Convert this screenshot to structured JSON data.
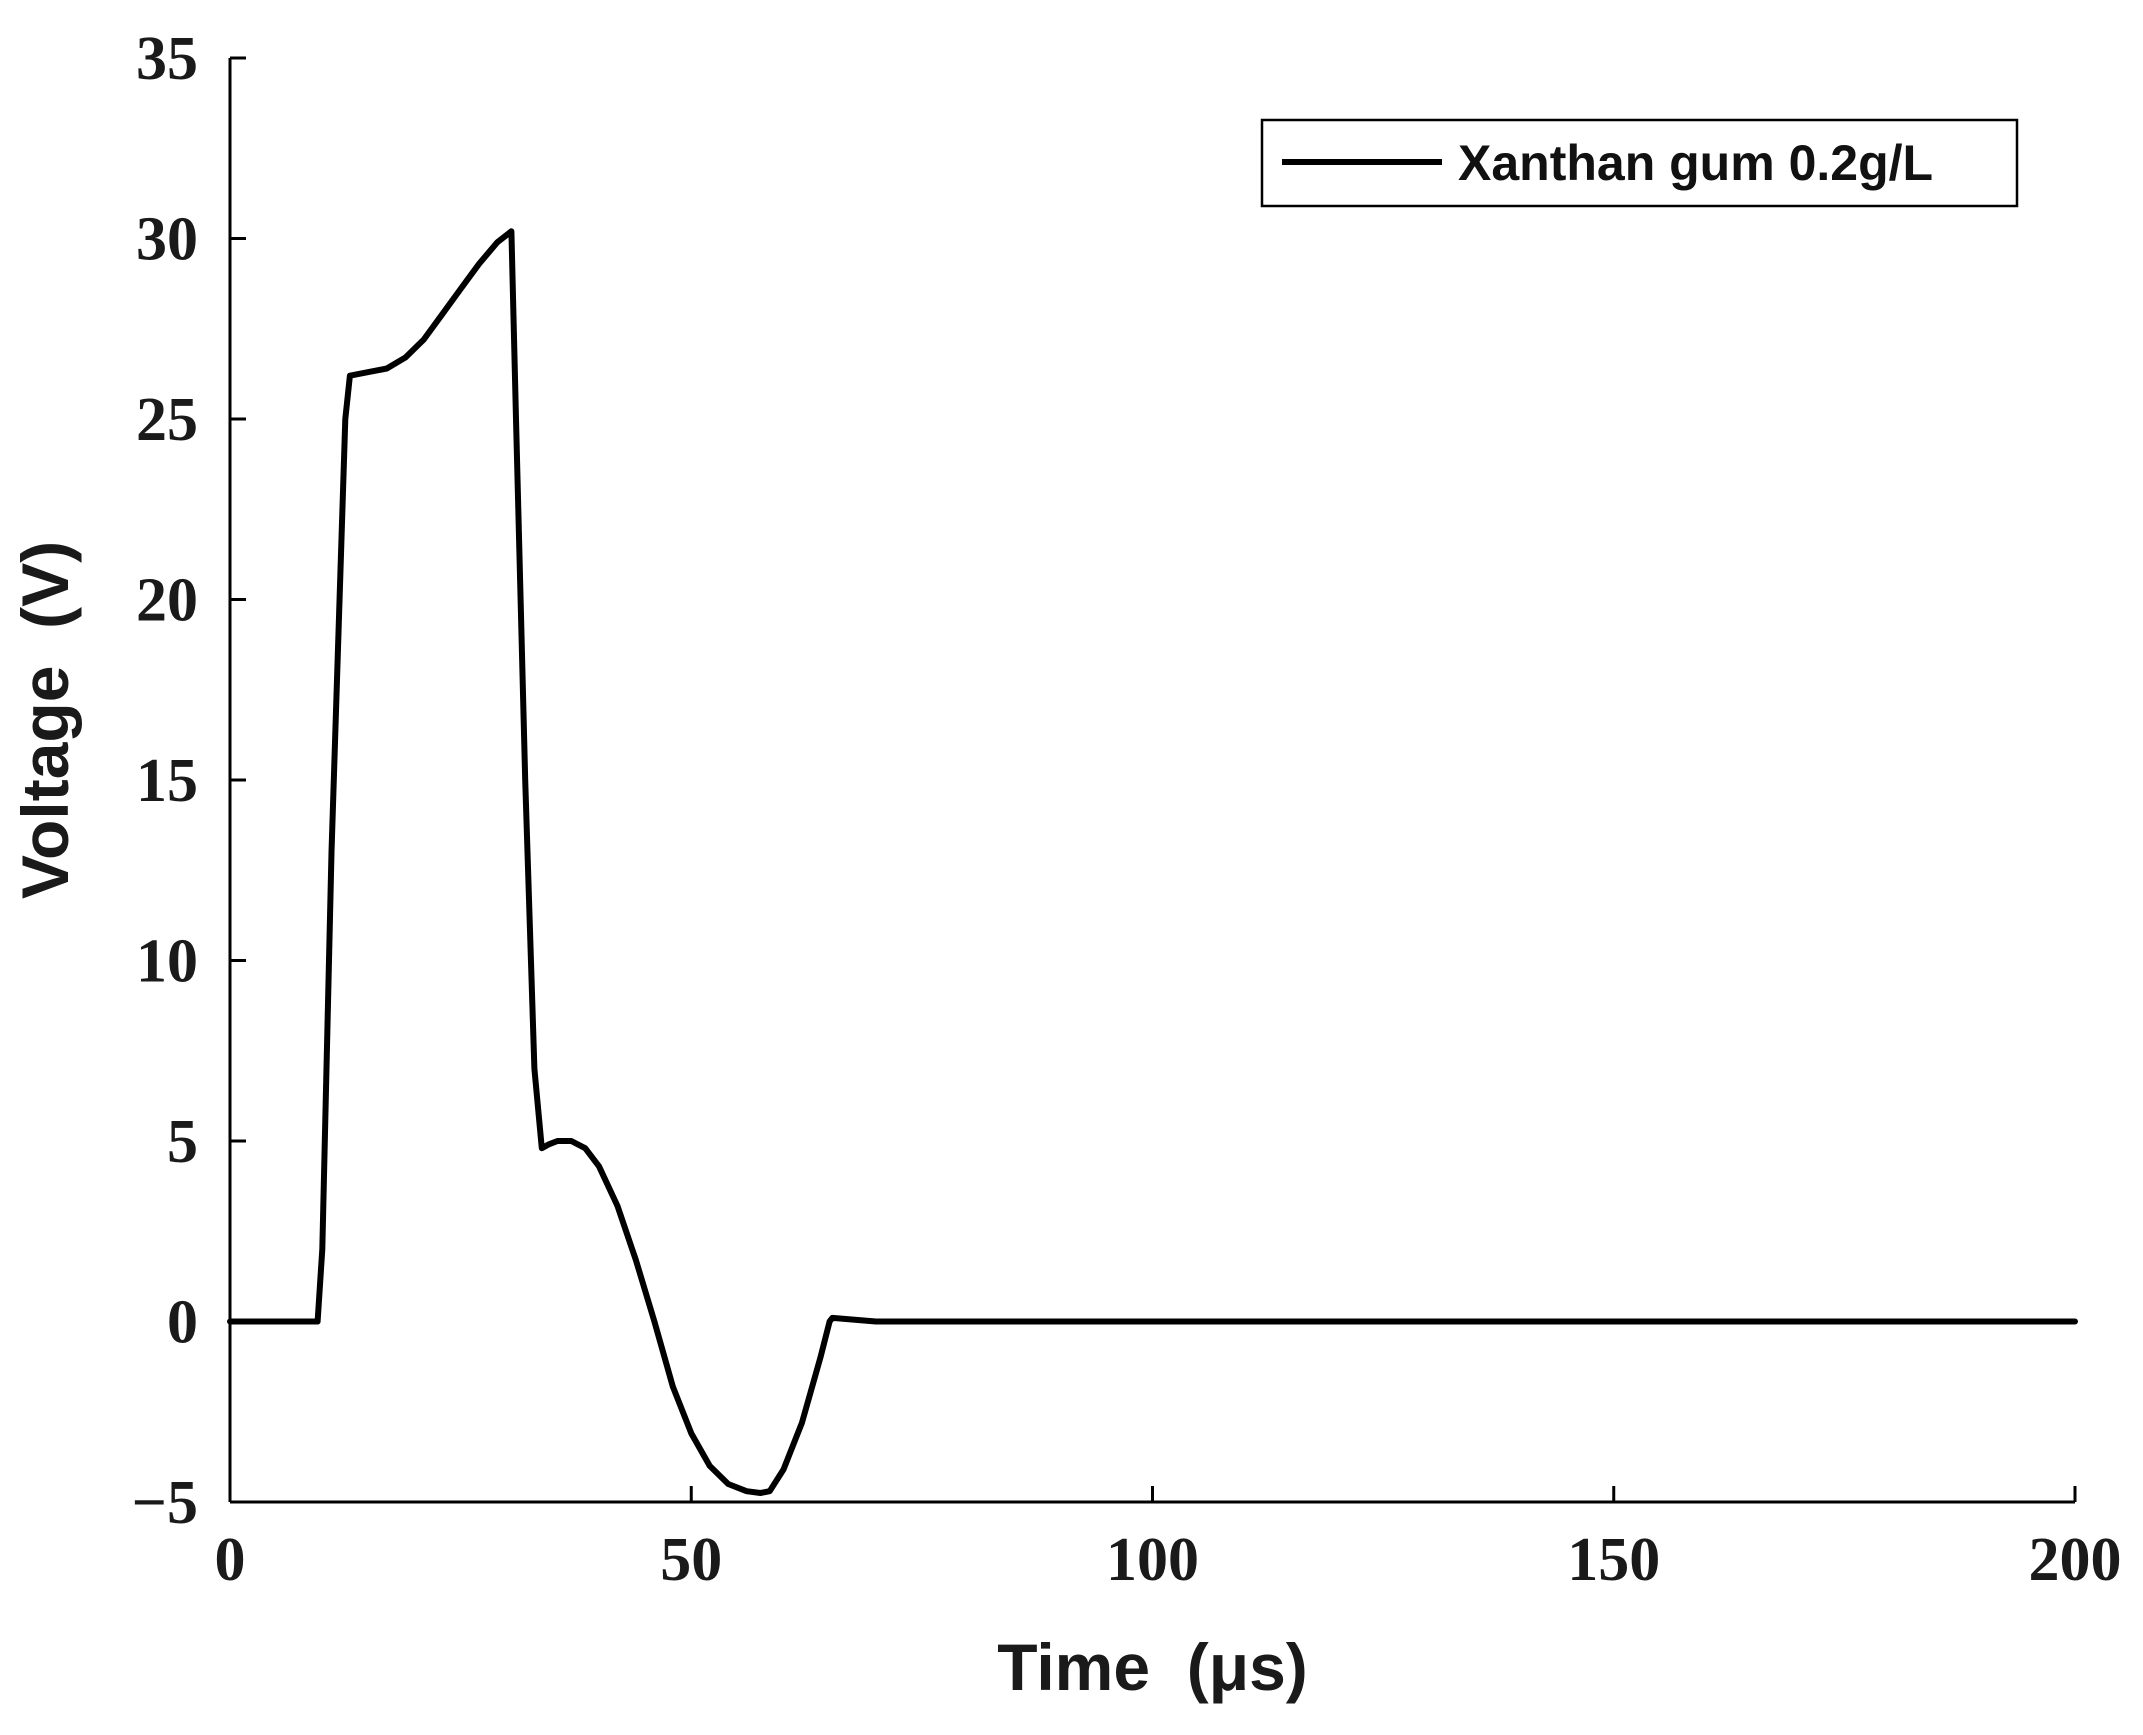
{
  "chart_data": {
    "type": "line",
    "xlabel": "Time  (μs)",
    "ylabel": "Voltage  (V)",
    "xlim": [
      0,
      200
    ],
    "ylim": [
      -5,
      35
    ],
    "xticks": [
      0,
      50,
      100,
      150,
      200
    ],
    "yticks": [
      -5,
      0,
      5,
      10,
      15,
      20,
      25,
      30,
      35
    ],
    "ytick_labels": [
      "−5",
      "0",
      "5",
      "10",
      "15",
      "20",
      "25",
      "30",
      "35"
    ],
    "grid": false,
    "legend_position": "top-right",
    "line_color": "#000000",
    "series": [
      {
        "name": "Xanthan gum 0.2g/L",
        "x": [
          0,
          5,
          9.5,
          10,
          11,
          12.5,
          13,
          15,
          17,
          19,
          21,
          23,
          25,
          27,
          29,
          30.5,
          31,
          32,
          33,
          33.8,
          34.5,
          35.5,
          37,
          38.5,
          40,
          42,
          44,
          46,
          48,
          50,
          52,
          54,
          56,
          57.5,
          58.5,
          60,
          62,
          64,
          65,
          65.3,
          70,
          100,
          150,
          200
        ],
        "y": [
          0,
          0,
          0,
          2,
          13,
          25,
          26.2,
          26.3,
          26.4,
          26.7,
          27.2,
          27.9,
          28.6,
          29.3,
          29.9,
          30.2,
          25,
          15,
          7,
          4.8,
          4.9,
          5.0,
          5.0,
          4.8,
          4.3,
          3.2,
          1.7,
          0,
          -1.8,
          -3.1,
          -4.0,
          -4.5,
          -4.7,
          -4.75,
          -4.7,
          -4.1,
          -2.8,
          -1.0,
          0,
          0.1,
          0,
          0,
          0,
          0
        ]
      }
    ]
  }
}
